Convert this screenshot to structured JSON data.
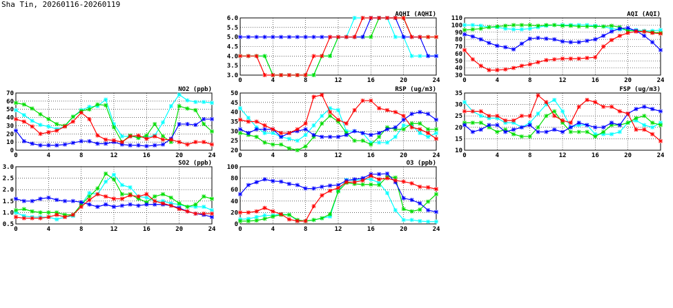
{
  "page_title": "Sha Tin, 20260116-20260119",
  "series_colors": {
    "red": "#ff0000",
    "green": "#00dd00",
    "cyan": "#00ffff",
    "blue": "#0000ff"
  },
  "chart_data": [
    {
      "type": "line",
      "title": "AQHI (AQHI)",
      "xlabel": "",
      "ylabel": "",
      "xlim": [
        0,
        24
      ],
      "ylim": [
        3,
        6
      ],
      "xticks": [
        "0",
        "4",
        "8",
        "12",
        "16",
        "20",
        "24"
      ],
      "yticks": [
        "3.0",
        "3.5",
        "4.0",
        "4.5",
        "5.0",
        "5.5",
        "6.0"
      ],
      "grid": true,
      "x": [
        0,
        1,
        2,
        3,
        4,
        5,
        6,
        7,
        8,
        9,
        10,
        11,
        12,
        13,
        14,
        15,
        16,
        17,
        18,
        19,
        20,
        21,
        22,
        23,
        24
      ],
      "series": [
        {
          "name": "cyan",
          "values": [
            4,
            4,
            4,
            4,
            3,
            3,
            3,
            3,
            3,
            3,
            4,
            4,
            5,
            5,
            6,
            6,
            6,
            6,
            6,
            5,
            5,
            4,
            4,
            4,
            4
          ]
        },
        {
          "name": "green",
          "values": [
            4,
            4,
            4,
            4,
            3,
            3,
            3,
            3,
            3,
            3,
            4,
            4,
            5,
            5,
            5,
            5,
            5,
            6,
            6,
            6,
            6,
            5,
            5,
            5,
            5
          ]
        },
        {
          "name": "blue",
          "values": [
            5,
            5,
            5,
            5,
            5,
            5,
            5,
            5,
            5,
            5,
            5,
            5,
            5,
            5,
            5,
            5,
            6,
            6,
            6,
            6,
            5,
            5,
            5,
            4,
            4
          ]
        },
        {
          "name": "red",
          "values": [
            4,
            4,
            4,
            3,
            3,
            3,
            3,
            3,
            3,
            4,
            4,
            5,
            5,
            5,
            5,
            6,
            6,
            6,
            6,
            6,
            6,
            5,
            5,
            5,
            5
          ]
        }
      ]
    },
    {
      "type": "line",
      "title": "AQI (AQI)",
      "xlabel": "",
      "ylabel": "",
      "xlim": [
        0,
        24
      ],
      "ylim": [
        30,
        110
      ],
      "xticks": [
        "0",
        "4",
        "8",
        "12",
        "16",
        "20",
        "24"
      ],
      "yticks": [
        "30",
        "40",
        "50",
        "60",
        "70",
        "80",
        "90",
        "100",
        "110"
      ],
      "grid": true,
      "x": [
        0,
        1,
        2,
        3,
        4,
        5,
        6,
        7,
        8,
        9,
        10,
        11,
        12,
        13,
        14,
        15,
        16,
        17,
        18,
        19,
        20,
        21,
        22,
        23,
        24
      ],
      "series": [
        {
          "name": "cyan",
          "values": [
            100,
            100,
            99,
            97,
            97,
            95,
            94,
            94,
            95,
            97,
            99,
            100,
            100,
            100,
            100,
            100,
            99,
            98,
            95,
            94,
            93,
            93,
            92,
            92,
            93
          ]
        },
        {
          "name": "green",
          "values": [
            93,
            94,
            95,
            97,
            98,
            99,
            100,
            100,
            100,
            99,
            100,
            100,
            99,
            99,
            98,
            98,
            98,
            98,
            99,
            97,
            92,
            92,
            91,
            90,
            89
          ]
        },
        {
          "name": "blue",
          "values": [
            87,
            84,
            80,
            75,
            71,
            69,
            66,
            74,
            81,
            82,
            81,
            80,
            77,
            76,
            76,
            78,
            80,
            85,
            91,
            95,
            96,
            92,
            85,
            76,
            65
          ]
        },
        {
          "name": "red",
          "values": [
            65,
            52,
            43,
            37,
            37,
            38,
            40,
            43,
            45,
            48,
            51,
            52,
            53,
            53,
            53,
            54,
            55,
            70,
            79,
            85,
            89,
            91,
            91,
            89,
            88
          ]
        }
      ]
    },
    {
      "type": "line",
      "title": "NO2 (ppb)",
      "xlabel": "",
      "ylabel": "",
      "xlim": [
        0,
        24
      ],
      "ylim": [
        0,
        70
      ],
      "xticks": [
        "0",
        "4",
        "8",
        "12",
        "16",
        "20",
        "24"
      ],
      "yticks": [
        "0",
        "10",
        "20",
        "30",
        "40",
        "50",
        "60",
        "70"
      ],
      "grid": true,
      "x": [
        0,
        1,
        2,
        3,
        4,
        5,
        6,
        7,
        8,
        9,
        10,
        11,
        12,
        13,
        14,
        15,
        16,
        17,
        18,
        19,
        20,
        21,
        22,
        23,
        24
      ],
      "series": [
        {
          "name": "cyan",
          "values": [
            49,
            43,
            36,
            31,
            29,
            26,
            29,
            41,
            49,
            53,
            54,
            62,
            32,
            17,
            17,
            16,
            16,
            18,
            34,
            54,
            68,
            61,
            59,
            59,
            58
          ]
        },
        {
          "name": "green",
          "values": [
            58,
            56,
            51,
            44,
            38,
            32,
            30,
            41,
            48,
            50,
            56,
            55,
            28,
            10,
            18,
            15,
            18,
            32,
            17,
            10,
            54,
            51,
            49,
            32,
            23
          ]
        },
        {
          "name": "blue",
          "values": [
            24,
            11,
            8,
            6,
            6,
            6,
            7,
            9,
            11,
            11,
            8,
            8,
            10,
            7,
            6,
            6,
            5,
            6,
            7,
            14,
            32,
            32,
            31,
            38,
            38
          ]
        },
        {
          "name": "red",
          "values": [
            38,
            35,
            29,
            20,
            22,
            24,
            29,
            35,
            46,
            38,
            18,
            13,
            12,
            10,
            17,
            18,
            14,
            17,
            13,
            13,
            10,
            7,
            10,
            10,
            7
          ]
        }
      ]
    },
    {
      "type": "line",
      "title": "RSP (ug/m3)",
      "xlabel": "",
      "ylabel": "",
      "xlim": [
        0,
        24
      ],
      "ylim": [
        20,
        50
      ],
      "xticks": [
        "0",
        "4",
        "8",
        "12",
        "16",
        "20",
        "24"
      ],
      "yticks": [
        "20",
        "25",
        "30",
        "35",
        "40",
        "45",
        "50"
      ],
      "grid": true,
      "x": [
        0,
        1,
        2,
        3,
        4,
        5,
        6,
        7,
        8,
        9,
        10,
        11,
        12,
        13,
        14,
        15,
        16,
        17,
        18,
        19,
        20,
        21,
        22,
        23,
        24
      ],
      "series": [
        {
          "name": "cyan",
          "values": [
            42,
            37,
            32,
            29,
            29,
            27,
            26,
            25,
            28,
            33,
            38,
            42,
            41,
            30,
            30,
            29,
            24,
            24,
            24,
            27,
            33,
            33,
            29,
            27,
            29
          ]
        },
        {
          "name": "green",
          "values": [
            29,
            28,
            27,
            24,
            23,
            23,
            21,
            20,
            22,
            27,
            34,
            38,
            35,
            29,
            25,
            25,
            23,
            27,
            32,
            31,
            31,
            34,
            34,
            31,
            31
          ]
        },
        {
          "name": "blue",
          "values": [
            31,
            29,
            31,
            31,
            31,
            27,
            29,
            30,
            31,
            28,
            27,
            27,
            27,
            28,
            30,
            29,
            28,
            29,
            31,
            32,
            36,
            39,
            40,
            39,
            36
          ]
        },
        {
          "name": "red",
          "values": [
            36,
            35,
            35,
            33,
            31,
            29,
            29,
            31,
            34,
            48,
            49,
            40,
            36,
            34,
            41,
            46,
            46,
            42,
            41,
            40,
            38,
            32,
            31,
            29,
            26
          ]
        }
      ]
    },
    {
      "type": "line",
      "title": "FSP (ug/m3)",
      "xlabel": "",
      "ylabel": "",
      "xlim": [
        0,
        24
      ],
      "ylim": [
        10,
        35
      ],
      "xticks": [
        "0",
        "4",
        "8",
        "12",
        "16",
        "20",
        "24"
      ],
      "yticks": [
        "10",
        "15",
        "20",
        "25",
        "30",
        "35"
      ],
      "grid": true,
      "x": [
        0,
        1,
        2,
        3,
        4,
        5,
        6,
        7,
        8,
        9,
        10,
        11,
        12,
        13,
        14,
        15,
        16,
        17,
        18,
        19,
        20,
        21,
        22,
        23,
        24
      ],
      "series": [
        {
          "name": "cyan",
          "values": [
            31,
            27,
            25,
            24,
            24,
            22,
            22,
            20,
            22,
            26,
            30,
            32,
            27,
            20,
            21,
            21,
            17,
            17,
            17,
            18,
            22,
            23,
            21,
            20,
            22
          ]
        },
        {
          "name": "green",
          "values": [
            22,
            22,
            22,
            20,
            18,
            19,
            17,
            16,
            16,
            20,
            25,
            27,
            22,
            18,
            18,
            18,
            16,
            18,
            21,
            21,
            22,
            24,
            25,
            22,
            21
          ]
        },
        {
          "name": "blue",
          "values": [
            21,
            18,
            19,
            21,
            21,
            18,
            19,
            20,
            21,
            18,
            18,
            19,
            18,
            20,
            22,
            21,
            20,
            20,
            22,
            21,
            26,
            28,
            29,
            28,
            27
          ]
        },
        {
          "name": "red",
          "values": [
            27,
            27,
            27,
            25,
            25,
            23,
            23,
            25,
            25,
            34,
            31,
            25,
            23,
            22,
            29,
            32,
            31,
            29,
            29,
            27,
            26,
            19,
            19,
            17,
            14
          ]
        }
      ]
    },
    {
      "type": "line",
      "title": "SO2 (ppb)",
      "xlabel": "",
      "ylabel": "",
      "xlim": [
        0,
        24
      ],
      "ylim": [
        0.5,
        3
      ],
      "xticks": [
        "0",
        "4",
        "8",
        "12",
        "16",
        "20",
        "24"
      ],
      "yticks": [
        "0.5",
        "1.0",
        "1.5",
        "2.0",
        "2.5",
        "3.0"
      ],
      "grid": true,
      "x": [
        0,
        1,
        2,
        3,
        4,
        5,
        6,
        7,
        8,
        9,
        10,
        11,
        12,
        13,
        14,
        15,
        16,
        17,
        18,
        19,
        20,
        21,
        22,
        23,
        24
      ],
      "series": [
        {
          "name": "cyan",
          "values": [
            1.0,
            0.85,
            0.8,
            0.8,
            0.8,
            0.7,
            0.8,
            0.85,
            1.35,
            1.85,
            1.8,
            2.35,
            2.65,
            2.2,
            2.1,
            1.7,
            1.65,
            1.5,
            1.5,
            1.4,
            1.35,
            1.25,
            1.25,
            1.25,
            1.1
          ]
        },
        {
          "name": "green",
          "values": [
            1.1,
            1.15,
            1.05,
            1.0,
            1.0,
            1.0,
            0.9,
            0.9,
            1.35,
            1.7,
            2.05,
            2.7,
            2.45,
            1.8,
            1.8,
            1.6,
            1.45,
            1.7,
            1.8,
            1.65,
            1.4,
            1.25,
            1.35,
            1.7,
            1.6
          ]
        },
        {
          "name": "blue",
          "values": [
            1.6,
            1.5,
            1.5,
            1.6,
            1.65,
            1.55,
            1.5,
            1.5,
            1.45,
            1.35,
            1.25,
            1.35,
            1.25,
            1.3,
            1.35,
            1.3,
            1.35,
            1.35,
            1.35,
            1.3,
            1.2,
            1.05,
            0.95,
            0.9,
            0.8
          ]
        },
        {
          "name": "red",
          "values": [
            0.8,
            0.75,
            0.75,
            0.75,
            0.8,
            0.9,
            0.8,
            0.9,
            1.25,
            1.55,
            1.8,
            1.7,
            1.6,
            1.6,
            1.75,
            1.7,
            1.8,
            1.5,
            1.4,
            1.3,
            1.15,
            1.05,
            0.95,
            0.95,
            0.95
          ]
        }
      ]
    },
    {
      "type": "line",
      "title": "O3 (ppb)",
      "xlabel": "",
      "ylabel": "",
      "xlim": [
        0,
        24
      ],
      "ylim": [
        0,
        100
      ],
      "xticks": [
        "0",
        "4",
        "8",
        "12",
        "16",
        "20",
        "24"
      ],
      "yticks": [
        "0",
        "20",
        "40",
        "60",
        "80",
        "100"
      ],
      "grid": true,
      "x": [
        0,
        1,
        2,
        3,
        4,
        5,
        6,
        7,
        8,
        9,
        10,
        11,
        12,
        13,
        14,
        15,
        16,
        17,
        18,
        19,
        20,
        21,
        22,
        23,
        24
      ],
      "series": [
        {
          "name": "cyan",
          "values": [
            8,
            9,
            12,
            15,
            15,
            17,
            16,
            6,
            5,
            7,
            10,
            13,
            58,
            77,
            76,
            78,
            78,
            72,
            54,
            24,
            7,
            7,
            5,
            4,
            4
          ]
        },
        {
          "name": "green",
          "values": [
            5,
            5,
            6,
            9,
            13,
            16,
            16,
            7,
            5,
            7,
            10,
            17,
            57,
            72,
            70,
            69,
            69,
            68,
            83,
            81,
            26,
            22,
            25,
            39,
            52
          ]
        },
        {
          "name": "blue",
          "values": [
            52,
            68,
            73,
            78,
            75,
            74,
            70,
            68,
            62,
            62,
            65,
            67,
            68,
            76,
            78,
            80,
            87,
            87,
            88,
            73,
            45,
            42,
            36,
            24,
            21
          ]
        },
        {
          "name": "red",
          "values": [
            20,
            20,
            22,
            28,
            22,
            17,
            8,
            5,
            5,
            31,
            50,
            58,
            63,
            73,
            73,
            76,
            84,
            78,
            80,
            76,
            74,
            71,
            65,
            64,
            61
          ]
        }
      ]
    }
  ]
}
